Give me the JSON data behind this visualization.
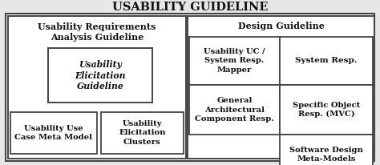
{
  "title": "USABILITY GUIDELINE",
  "title_fontsize": 10.5,
  "left_panel_label": "Usability Requirements\nAnalysis Guideline",
  "right_panel_label": "Design Guideline",
  "box_elicitation_guideline": "Usability\nElicitation\nGuideline",
  "box_use_case": "Usability Use\nCase Meta Model",
  "box_elicitation_clusters": "Usability\nElicitation\nClusters",
  "box_uc_mapper": "Usability UC /\nSystem Resp.\nMapper",
  "box_system_resp": "System Resp.",
  "box_general_arch": "General\nArchitectural\nComponent Resp.",
  "box_specific_obj": "Specific Object\nResp. (MVC)",
  "box_software_design": "Software Design\nMeta-Models",
  "bg_color": "#e8e6e6",
  "box_fill": "#ffffff",
  "border_color": "#444444",
  "text_color": "#111111",
  "font_family": "DejaVu Serif"
}
